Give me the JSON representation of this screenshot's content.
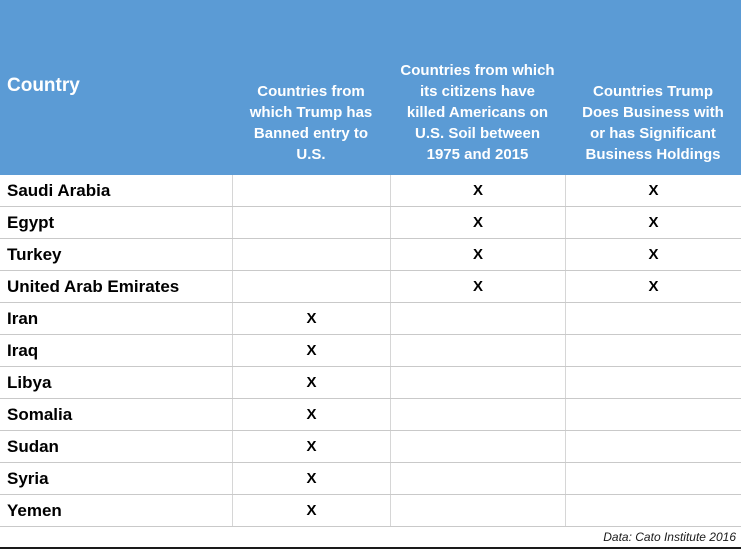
{
  "table": {
    "headers": [
      "Country",
      "Countries from which Trump has Banned entry to U.S.",
      "Countries from which its citizens have killed Americans on U.S. Soil between 1975 and 2015",
      "Countries Trump Does Business with or has Significant Business Holdings"
    ],
    "rows": [
      {
        "country": "Saudi Arabia",
        "banned": "",
        "killed": "X",
        "business": "X"
      },
      {
        "country": "Egypt",
        "banned": "",
        "killed": "X",
        "business": "X"
      },
      {
        "country": "Turkey",
        "banned": "",
        "killed": "X",
        "business": "X"
      },
      {
        "country": "United Arab Emirates",
        "banned": "",
        "killed": "X",
        "business": "X"
      },
      {
        "country": "Iran",
        "banned": "X",
        "killed": "",
        "business": ""
      },
      {
        "country": "Iraq",
        "banned": "X",
        "killed": "",
        "business": ""
      },
      {
        "country": "Libya",
        "banned": "X",
        "killed": "",
        "business": ""
      },
      {
        "country": "Somalia",
        "banned": "X",
        "killed": "",
        "business": ""
      },
      {
        "country": "Sudan",
        "banned": "X",
        "killed": "",
        "business": ""
      },
      {
        "country": "Syria",
        "banned": "X",
        "killed": "",
        "business": ""
      },
      {
        "country": "Yemen",
        "banned": "X",
        "killed": "",
        "business": ""
      }
    ],
    "source": "Data: Cato Institute 2016"
  },
  "chart_data": {
    "type": "table",
    "columns": [
      "Country",
      "Countries from which Trump has Banned entry to U.S.",
      "Countries from which its citizens have killed Americans on U.S. Soil between 1975 and 2015",
      "Countries Trump Does Business with or has Significant Business Holdings"
    ],
    "rows": [
      [
        "Saudi Arabia",
        "",
        "X",
        "X"
      ],
      [
        "Egypt",
        "",
        "X",
        "X"
      ],
      [
        "Turkey",
        "",
        "X",
        "X"
      ],
      [
        "United Arab Emirates",
        "",
        "X",
        "X"
      ],
      [
        "Iran",
        "X",
        "",
        ""
      ],
      [
        "Iraq",
        "X",
        "",
        ""
      ],
      [
        "Libya",
        "X",
        "",
        ""
      ],
      [
        "Somalia",
        "X",
        "",
        ""
      ],
      [
        "Sudan",
        "X",
        "",
        ""
      ],
      [
        "Syria",
        "X",
        "",
        ""
      ],
      [
        "Yemen",
        "X",
        "",
        ""
      ]
    ],
    "source": "Data: Cato Institute 2016"
  },
  "colors": {
    "header_bg": "#5b9bd5",
    "header_text": "#ffffff",
    "body_bg": "#ffffff",
    "row_border": "#c9c9c9",
    "column_border": "#d6d6d6",
    "body_text": "#000000",
    "bottom_rule": "#1a1a1a"
  }
}
